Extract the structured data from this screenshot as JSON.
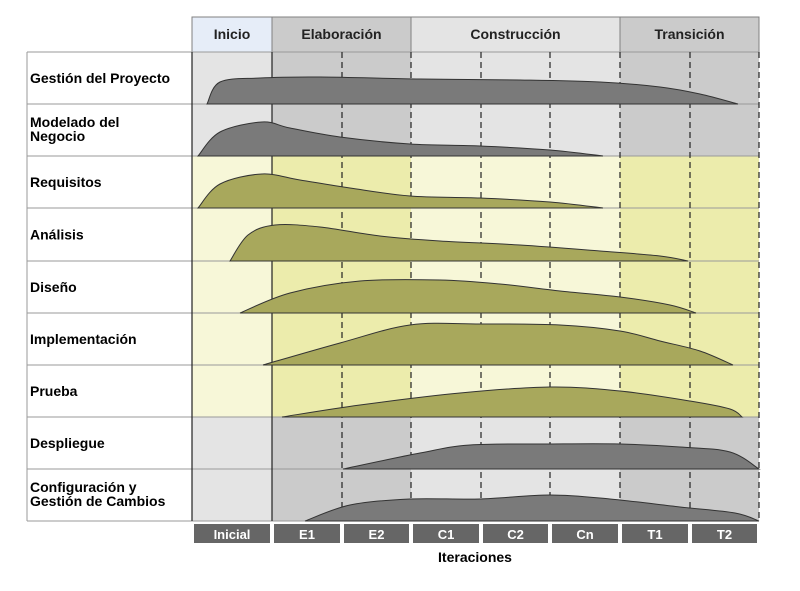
{
  "phases": [
    {
      "label": "Inicio",
      "fill": "#e6edf8"
    },
    {
      "label": "Elaboración",
      "fill": "#cbcbcb"
    },
    {
      "label": "Construcción",
      "fill": "#e4e4e4"
    },
    {
      "label": "Transición",
      "fill": "#cbcbcb"
    }
  ],
  "disciplines": [
    {
      "lines": [
        "Gestión del Proyecto"
      ],
      "kind": "gray"
    },
    {
      "lines": [
        "Modelado del",
        "Negocio"
      ],
      "kind": "gray"
    },
    {
      "lines": [
        "Requisitos"
      ],
      "kind": "olive"
    },
    {
      "lines": [
        "Análisis"
      ],
      "kind": "olive"
    },
    {
      "lines": [
        "Diseño"
      ],
      "kind": "olive"
    },
    {
      "lines": [
        "Implementación"
      ],
      "kind": "olive"
    },
    {
      "lines": [
        "Prueba"
      ],
      "kind": "olive"
    },
    {
      "lines": [
        "Despliegue"
      ],
      "kind": "gray"
    },
    {
      "lines": [
        "Configuración y",
        "Gestión de Cambios"
      ],
      "kind": "gray"
    }
  ],
  "iterations": [
    "Inicial",
    "E1",
    "E2",
    "C1",
    "C2",
    "Cn",
    "T1",
    "T2"
  ],
  "axis_label": "Iteraciones",
  "colors": {
    "gray_band_light": "#e4e4e4",
    "gray_band_dark": "#cbcbcb",
    "yellow_band_light": "#f7f7d8",
    "yellow_band_dark": "#ececac",
    "gray_hump": "#7a7a7a",
    "olive_hump": "#a8a85c",
    "iteration_box": "#666666"
  }
}
